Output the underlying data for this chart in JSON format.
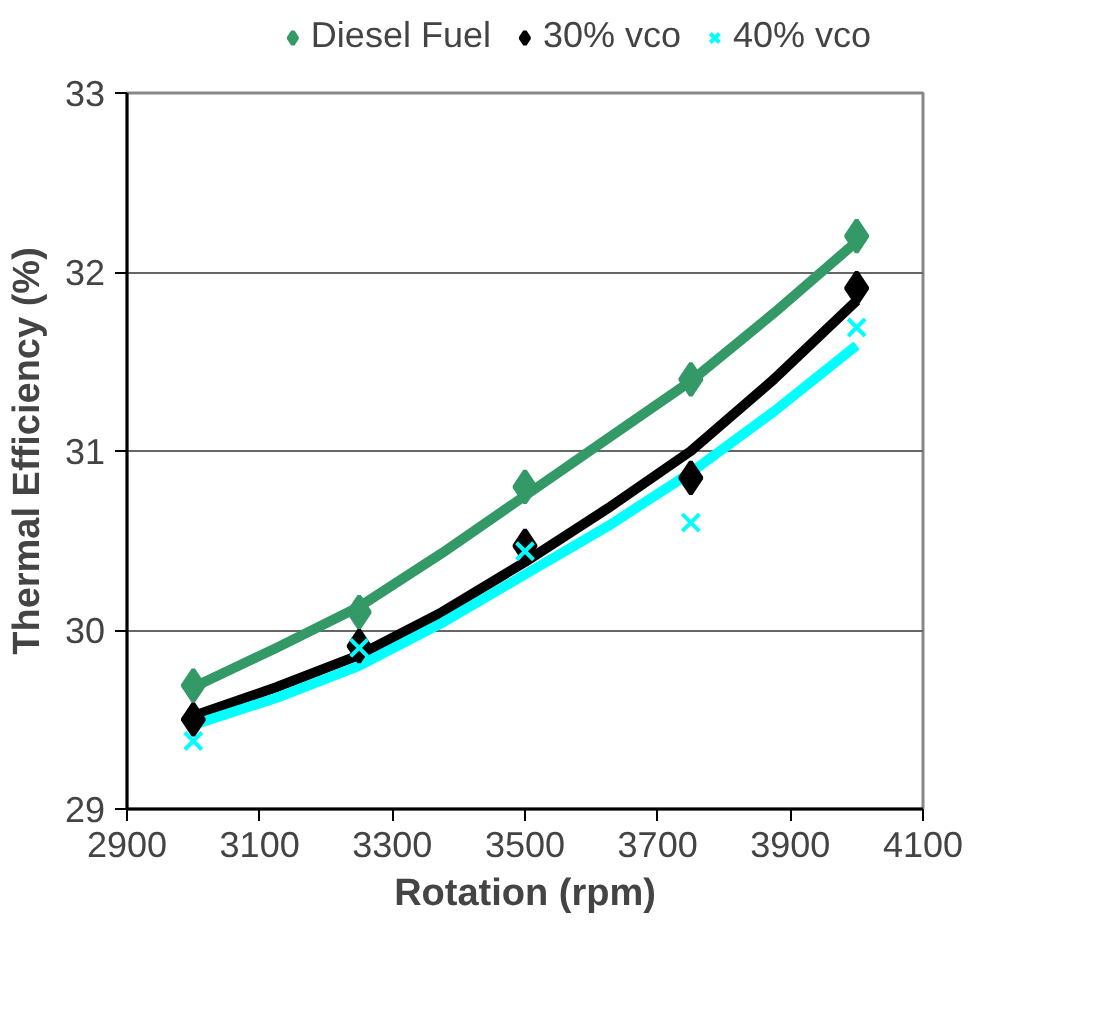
{
  "chart_data": {
    "type": "scatter",
    "xlabel": "Rotation (rpm)",
    "ylabel": "Thermal Efficiency (%)",
    "xlim": [
      2900,
      4100
    ],
    "xticks": [
      2900,
      3100,
      3300,
      3500,
      3700,
      3900,
      4100
    ],
    "ylim": [
      29,
      33
    ],
    "yticks": [
      29,
      30,
      31,
      32,
      33
    ],
    "grid": "y",
    "legend": "top",
    "x": [
      3000,
      3250,
      3500,
      3750,
      4000
    ],
    "series": [
      {
        "name": "Diesel Fuel",
        "color": "#339966",
        "marker": "diamond",
        "values": [
          29.69,
          30.1,
          30.8,
          31.4,
          32.2
        ]
      },
      {
        "name": "30% vco",
        "color": "#000000",
        "marker": "diamond",
        "values": [
          29.5,
          29.91,
          30.47,
          30.85,
          31.91
        ]
      },
      {
        "name": "40% vco",
        "color": "#00ffff",
        "marker": "cross",
        "values": [
          29.38,
          29.9,
          30.44,
          30.6,
          31.69
        ]
      },
      {
        "type": "line",
        "color": "#339966",
        "x": [
          3000,
          3125,
          3250,
          3375,
          3500,
          3625,
          3750,
          3875,
          4000
        ],
        "values": [
          29.68,
          29.9,
          30.13,
          30.43,
          30.75,
          31.07,
          31.39,
          31.77,
          32.17
        ]
      },
      {
        "type": "line",
        "color": "#000000",
        "x": [
          3000,
          3125,
          3250,
          3375,
          3500,
          3625,
          3750,
          3875,
          4000
        ],
        "values": [
          29.52,
          29.68,
          29.86,
          30.1,
          30.38,
          30.68,
          31.0,
          31.4,
          31.84
        ]
      },
      {
        "type": "line",
        "color": "#00ffff",
        "x": [
          3000,
          3125,
          3250,
          3375,
          3500,
          3625,
          3750,
          3875,
          4000
        ],
        "values": [
          29.47,
          29.62,
          29.8,
          30.04,
          30.31,
          30.58,
          30.88,
          31.22,
          31.59
        ]
      }
    ]
  }
}
